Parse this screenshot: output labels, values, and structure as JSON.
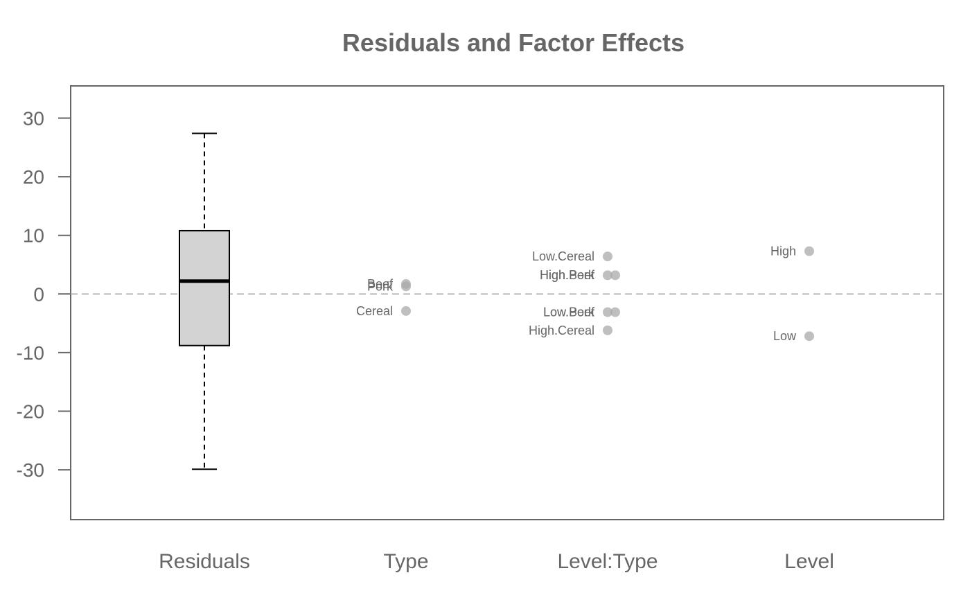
{
  "chart_data": {
    "type": "boxplot-dotplot",
    "title": "Residuals and Factor Effects",
    "xlabel": "",
    "ylabel": "",
    "ylim": [
      -38.5,
      35.5
    ],
    "yticks": [
      30,
      20,
      10,
      0,
      -10,
      -20,
      -30
    ],
    "categories": [
      "Residuals",
      "Type",
      "Level:Type",
      "Level"
    ],
    "reference_line": 0,
    "boxplot": {
      "category": "Residuals",
      "min": -29.9,
      "q1": -8.8,
      "median": 2.2,
      "q3": 10.8,
      "max": 27.4,
      "fill": "#d3d3d3"
    },
    "effects": [
      {
        "category": "Type",
        "points": [
          {
            "label": "Beef",
            "value": 1.7,
            "jitter": 0
          },
          {
            "label": "Pork",
            "value": 1.3,
            "jitter": 0
          },
          {
            "label": "Cereal",
            "value": -2.9,
            "jitter": 0
          }
        ]
      },
      {
        "category": "Level:Type",
        "points": [
          {
            "label": "Low.Cereal",
            "value": 6.4,
            "jitter": 0
          },
          {
            "label": "High.Pork",
            "value": 3.2,
            "jitter": 0
          },
          {
            "label": "High.Beef",
            "value": 3.2,
            "jitter": 1
          },
          {
            "label": "Low.Pork",
            "value": -3.1,
            "jitter": 0
          },
          {
            "label": "Low.Beef",
            "value": -3.1,
            "jitter": 1
          },
          {
            "label": "High.Cereal",
            "value": -6.2,
            "jitter": 0
          }
        ]
      },
      {
        "category": "Level",
        "points": [
          {
            "label": "High",
            "value": 7.3,
            "jitter": 0
          },
          {
            "label": "Low",
            "value": -7.2,
            "jitter": 0
          }
        ]
      }
    ],
    "point_color": "#a9a9a9",
    "grid": false,
    "legend": "none"
  }
}
